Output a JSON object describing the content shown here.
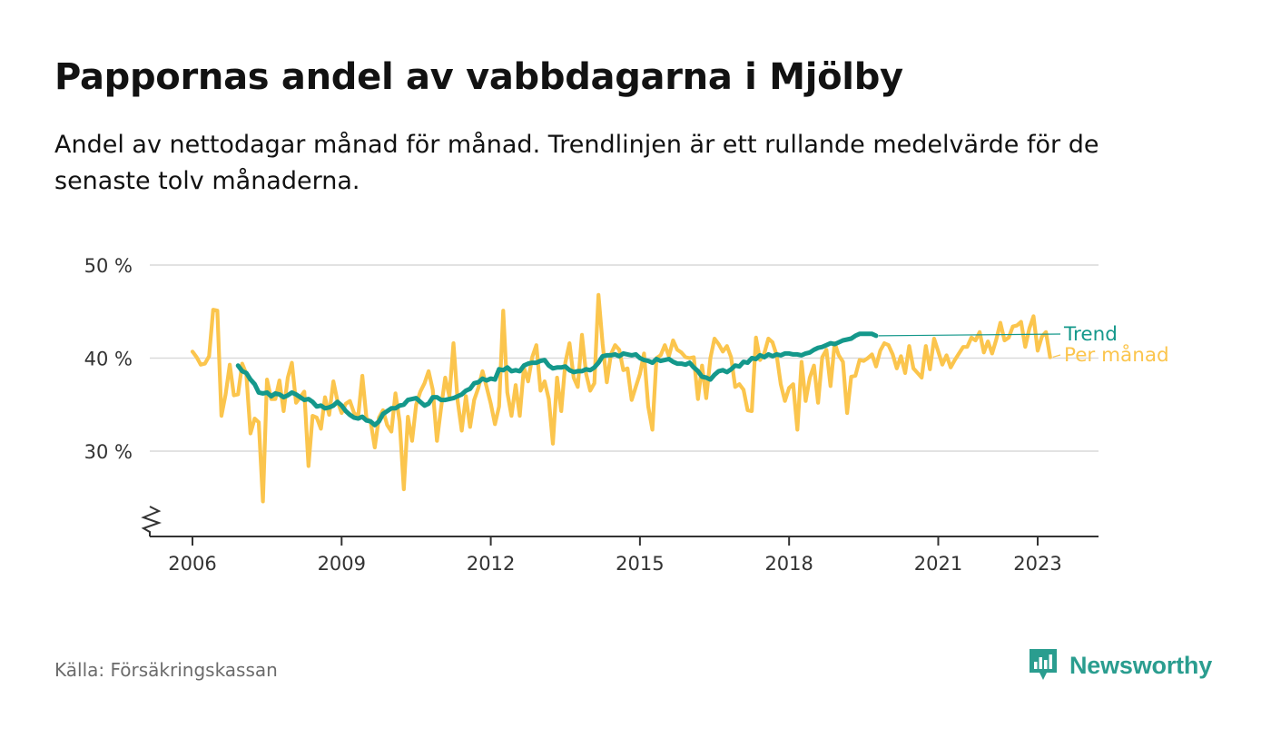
{
  "title": "Pappornas andel av vabbdagarna i Mjölby",
  "subtitle": "Andel av nettodagar månad för månad. Trendlinjen är ett rullande medelvärde för de senaste tolv månaderna.",
  "source": "Källa: Försäkringskassan",
  "brand": {
    "name": "Newsworthy",
    "icon": "newsworthy-logo-icon"
  },
  "colors": {
    "monthly": "#fbc54d",
    "trend": "#14988b",
    "grid": "#d9d9d9",
    "axis": "#333333"
  },
  "chart_data": {
    "type": "line",
    "title": "Pappornas andel av vabbdagarna i Mjölby",
    "xlabel": "",
    "ylabel": "",
    "ylim": [
      20,
      50
    ],
    "xlim": [
      "2005-07",
      "2024-07"
    ],
    "y_ticks": [
      30,
      40,
      50
    ],
    "y_tick_labels": [
      "30 %",
      "40 %",
      "50 %"
    ],
    "x_ticks": [
      "2006-01",
      "2009-01",
      "2012-01",
      "2015-01",
      "2018-01",
      "2021-01",
      "2023-01"
    ],
    "x_tick_labels": [
      "2006",
      "2009",
      "2012",
      "2015",
      "2018",
      "2021",
      "2023"
    ],
    "grid": "horizontal",
    "legend": "labels at line ends, right",
    "y_axis_break": true,
    "series": [
      {
        "name": "Trend",
        "color": "#14988b",
        "start": "2006-12",
        "values": [
          39.2,
          38.6,
          38.4,
          37.7,
          37.2,
          36.3,
          36.2,
          36.3,
          35.9,
          36.2,
          36.1,
          35.8,
          36.0,
          36.3,
          36.1,
          35.8,
          35.5,
          35.6,
          35.3,
          34.8,
          34.9,
          34.6,
          34.7,
          34.9,
          35.3,
          34.9,
          34.3,
          33.9,
          33.6,
          33.5,
          33.7,
          33.3,
          33.2,
          32.8,
          33.2,
          34.0,
          34.3,
          34.6,
          34.6,
          34.9,
          35.0,
          35.5,
          35.6,
          35.7,
          35.3,
          34.9,
          35.1,
          35.8,
          35.8,
          35.5,
          35.5,
          35.6,
          35.7,
          35.9,
          36.1,
          36.5,
          36.7,
          37.3,
          37.4,
          37.8,
          37.6,
          37.8,
          37.7,
          38.8,
          38.7,
          39.0,
          38.6,
          38.7,
          38.6,
          39.2,
          39.4,
          39.5,
          39.5,
          39.7,
          39.8,
          39.2,
          38.9,
          39.0,
          39.0,
          39.1,
          38.7,
          38.5,
          38.6,
          38.6,
          38.8,
          38.7,
          39.0,
          39.5,
          40.2,
          40.3,
          40.3,
          40.4,
          40.2,
          40.5,
          40.4,
          40.3,
          40.4,
          40.0,
          39.8,
          39.7,
          39.5,
          39.9,
          39.7,
          39.8,
          39.9,
          39.6,
          39.4,
          39.4,
          39.3,
          39.5,
          39.0,
          38.6,
          38.0,
          37.9,
          37.7,
          38.2,
          38.6,
          38.7,
          38.5,
          38.8,
          39.2,
          39.1,
          39.6,
          39.5,
          40.0,
          39.9,
          40.3,
          40.1,
          40.4,
          40.2,
          40.4,
          40.3,
          40.5,
          40.5,
          40.4,
          40.4,
          40.3,
          40.5,
          40.6,
          40.9,
          41.1,
          41.2,
          41.4,
          41.6,
          41.5,
          41.7,
          41.9,
          42.0,
          42.1,
          42.4,
          42.6,
          42.6,
          42.6,
          42.6,
          42.4
        ]
      },
      {
        "name": "Per månad",
        "color": "#fbc54d",
        "start": "2006-01",
        "values": [
          40.7,
          40.1,
          39.3,
          39.4,
          40.2,
          45.2,
          45.1,
          33.8,
          36.1,
          39.3,
          36.0,
          36.1,
          39.4,
          38.3,
          31.9,
          33.5,
          33.1,
          24.6,
          37.7,
          35.6,
          35.6,
          37.6,
          34.3,
          37.9,
          39.5,
          35.2,
          35.8,
          36.4,
          28.4,
          33.8,
          33.6,
          32.4,
          35.8,
          33.9,
          37.5,
          35.4,
          34.1,
          35.1,
          35.4,
          34.1,
          33.7,
          38.1,
          33.5,
          33.2,
          30.4,
          33.6,
          34.4,
          32.8,
          32.1,
          36.2,
          33.2,
          25.9,
          33.7,
          31.1,
          35.0,
          36.4,
          37.3,
          38.6,
          36.6,
          31.1,
          34.6,
          37.9,
          35.9,
          41.6,
          35.4,
          32.2,
          35.9,
          32.6,
          35.5,
          36.8,
          38.6,
          36.9,
          35.1,
          32.9,
          34.8,
          45.1,
          36.3,
          33.8,
          37.1,
          33.8,
          39.0,
          37.5,
          40.1,
          41.4,
          36.5,
          37.5,
          35.6,
          30.8,
          37.9,
          34.3,
          39.5,
          41.6,
          37.9,
          36.9,
          42.5,
          38.3,
          36.5,
          37.3,
          46.8,
          41.5,
          37.4,
          40.4,
          41.4,
          40.9,
          38.7,
          38.9,
          35.5,
          36.9,
          38.3,
          40.5,
          34.8,
          32.3,
          40.0,
          40.3,
          41.4,
          40.2,
          41.9,
          40.9,
          40.6,
          40.1,
          40.0,
          40.1,
          35.6,
          39.2,
          35.7,
          40.0,
          42.1,
          41.5,
          40.7,
          41.3,
          40.1,
          36.9,
          37.2,
          36.6,
          34.4,
          34.3,
          42.2,
          39.8,
          40.5,
          42.1,
          41.7,
          40.3,
          37.2,
          35.4,
          36.8,
          37.2,
          32.3,
          39.6,
          35.4,
          37.9,
          39.2,
          35.2,
          40.1,
          40.9,
          37.0,
          41.6,
          40.3,
          39.6,
          34.1,
          38.0,
          38.1,
          39.8,
          39.7,
          40.0,
          40.4,
          39.1,
          40.8,
          41.6,
          41.4,
          40.4,
          38.9,
          40.2,
          38.4,
          41.3,
          38.9,
          38.4,
          37.9,
          41.3,
          38.8,
          42.1,
          40.7,
          39.3,
          40.3,
          39.0,
          39.8,
          40.5,
          41.2,
          41.2,
          42.2,
          41.9,
          42.8,
          40.6,
          41.8,
          40.5,
          42.0,
          43.8,
          41.9,
          42.2,
          43.4,
          43.5,
          43.9,
          41.2,
          43.2,
          44.5,
          40.8,
          42.3,
          42.8,
          40.1
        ]
      }
    ]
  }
}
